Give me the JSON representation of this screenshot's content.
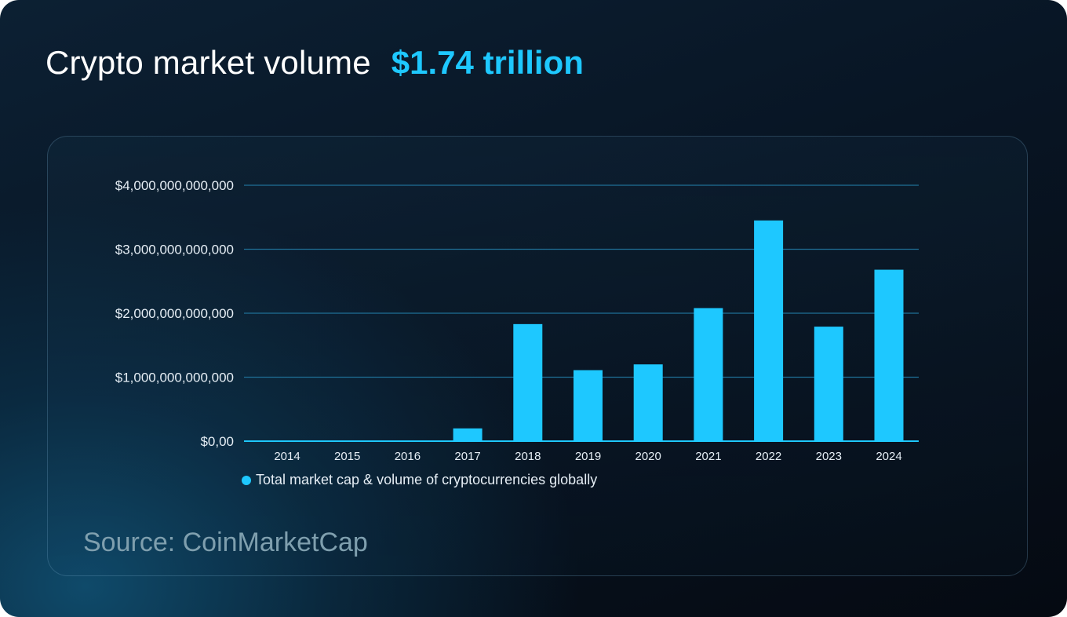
{
  "title": {
    "text": "Crypto market volume",
    "highlight": "$1.74 trillion"
  },
  "source": "Source: CoinMarketCap",
  "colors": {
    "accent": "#1ec8ff",
    "gridline": "#1f6f96",
    "axis": "#1ec8ff"
  },
  "chart_data": {
    "type": "bar",
    "categories": [
      "2014",
      "2015",
      "2016",
      "2017",
      "2018",
      "2019",
      "2020",
      "2021",
      "2022",
      "2023",
      "2024"
    ],
    "series": [
      {
        "name": "Total market cap & volume of cryptocurrencies globally",
        "values": [
          0,
          0,
          0,
          200000000000,
          1830000000000,
          1110000000000,
          1200000000000,
          2080000000000,
          3450000000000,
          1790000000000,
          2680000000000
        ]
      }
    ],
    "yticks": [
      0,
      1000000000000,
      2000000000000,
      3000000000000,
      4000000000000
    ],
    "ytick_labels": [
      "$0,00",
      "$1,000,000,000,000",
      "$2,000,000,000,000",
      "$3,000,000,000,000",
      "$4,000,000,000,000"
    ],
    "ylim": [
      0,
      4000000000000
    ],
    "xlabel": "",
    "ylabel": "",
    "grid": true,
    "legend_position": "bottom-left"
  }
}
